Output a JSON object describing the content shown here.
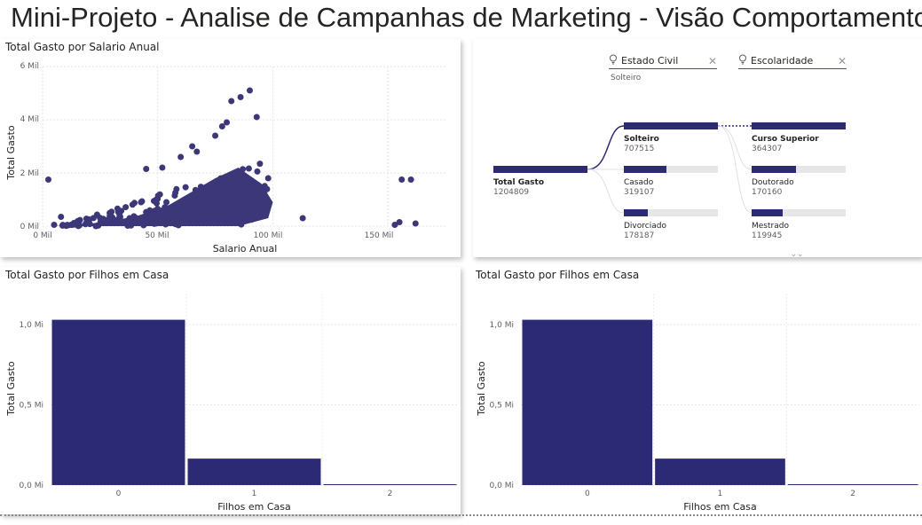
{
  "page": {
    "title": "Mini-Projeto - Analise de Campanhas de Marketing - Visão Comportamento"
  },
  "colors": {
    "primary": "#2c2a74",
    "scatter": "#3b3779"
  },
  "scatter": {
    "title": "Total Gasto por Salario Anual",
    "xlabel": "Salario Anual",
    "ylabel": "Total Gasto",
    "x_ticks": [
      "0 Mil",
      "50 Mil",
      "100 Mil",
      "150 Mil"
    ],
    "y_ticks": [
      "0 Mil",
      "2 Mil",
      "4 Mil",
      "6 Mil"
    ]
  },
  "decomposition": {
    "filters": [
      {
        "label": "Estado Civil",
        "icon": "lightbulb-icon",
        "selected": "Solteiro"
      },
      {
        "label": "Escolaridade",
        "icon": "lightbulb-icon",
        "selected": ""
      }
    ],
    "root": {
      "name": "Total Gasto",
      "value": "1204809"
    },
    "level1": [
      {
        "name": "Solteiro",
        "value": "707515",
        "fill": 1.0
      },
      {
        "name": "Casado",
        "value": "319107",
        "fill": 0.451
      },
      {
        "name": "Divorciado",
        "value": "178187",
        "fill": 0.252
      }
    ],
    "level2": [
      {
        "name": "Curso Superior",
        "value": "364307",
        "fill": 1.0
      },
      {
        "name": "Doutorado",
        "value": "170160",
        "fill": 0.467
      },
      {
        "name": "Mestrado",
        "value": "119945",
        "fill": 0.329
      }
    ]
  },
  "chart_data": [
    {
      "type": "scatter",
      "title": "Total Gasto por Salario Anual",
      "xlabel": "Salario Anual",
      "ylabel": "Total Gasto",
      "xlim": [
        0,
        175000
      ],
      "ylim": [
        0,
        6000
      ],
      "x_ticks": [
        0,
        50000,
        100000,
        150000
      ],
      "y_ticks": [
        0,
        2000,
        4000,
        6000
      ],
      "outliers": [
        {
          "x": 2500,
          "y": 1750
        },
        {
          "x": 5000,
          "y": 50
        },
        {
          "x": 8000,
          "y": 350
        },
        {
          "x": 45000,
          "y": 2150
        },
        {
          "x": 52000,
          "y": 2200
        },
        {
          "x": 60000,
          "y": 2600
        },
        {
          "x": 65000,
          "y": 3000
        },
        {
          "x": 67000,
          "y": 2800
        },
        {
          "x": 75000,
          "y": 3400
        },
        {
          "x": 78000,
          "y": 3750
        },
        {
          "x": 80000,
          "y": 3900
        },
        {
          "x": 82000,
          "y": 4700
        },
        {
          "x": 86000,
          "y": 4850
        },
        {
          "x": 90000,
          "y": 5100
        },
        {
          "x": 93000,
          "y": 4100
        },
        {
          "x": 98000,
          "y": 1800
        },
        {
          "x": 113000,
          "y": 300
        },
        {
          "x": 153000,
          "y": 50
        },
        {
          "x": 155000,
          "y": 150
        },
        {
          "x": 156000,
          "y": 1750
        },
        {
          "x": 160000,
          "y": 1750
        },
        {
          "x": 162000,
          "y": 100
        }
      ]
    },
    {
      "type": "bar",
      "title": "Total Gasto por Filhos em Casa",
      "xlabel": "Filhos em Casa",
      "ylabel": "Total Gasto",
      "categories": [
        "0",
        "1",
        "2"
      ],
      "values": [
        1030000,
        165000,
        5000
      ],
      "ylim": [
        0,
        1000000
      ],
      "y_ticks": [
        "0,0 Mi",
        "0,5 Mi",
        "1,0 Mi"
      ],
      "y_tick_values": [
        0,
        500000,
        1000000
      ]
    },
    {
      "type": "bar",
      "title": "Total Gasto por Filhos em Casa",
      "xlabel": "Filhos em Casa",
      "ylabel": "Total Gasto",
      "categories": [
        "0",
        "1",
        "2"
      ],
      "values": [
        1030000,
        165000,
        5000
      ],
      "ylim": [
        0,
        1000000
      ],
      "y_ticks": [
        "0,0 Mi",
        "0,5 Mi",
        "1,0 Mi"
      ],
      "y_tick_values": [
        0,
        500000,
        1000000
      ]
    }
  ]
}
